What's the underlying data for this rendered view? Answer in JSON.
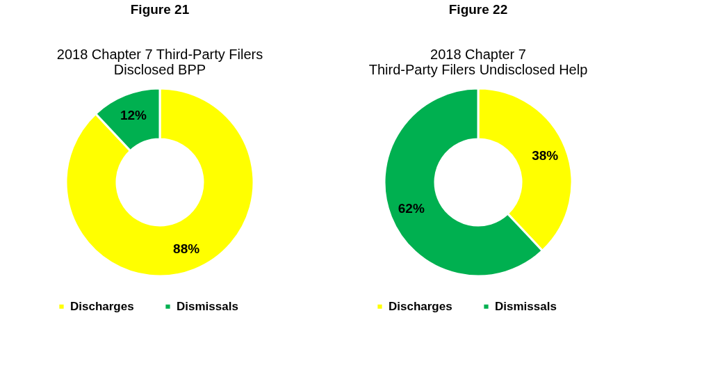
{
  "chart_data": [
    {
      "type": "donut",
      "title": "Figure 21",
      "subtitle": "2018 Chapter 7 Third-Party Filers\nDisclosed BPP",
      "categories": [
        "Discharges",
        "Dismissals"
      ],
      "values": [
        88,
        12
      ],
      "colors": [
        "#ffff00",
        "#00b050"
      ],
      "value_labels": [
        "88%",
        "12%"
      ],
      "legend": "bottom"
    },
    {
      "type": "donut",
      "title": "Figure 22",
      "subtitle": "2018 Chapter 7\nThird-Party Filers Undisclosed Help",
      "categories": [
        "Discharges",
        "Dismissals"
      ],
      "values": [
        38,
        62
      ],
      "colors": [
        "#ffff00",
        "#00b050"
      ],
      "value_labels": [
        "38%",
        "62%"
      ],
      "legend": "bottom"
    }
  ]
}
